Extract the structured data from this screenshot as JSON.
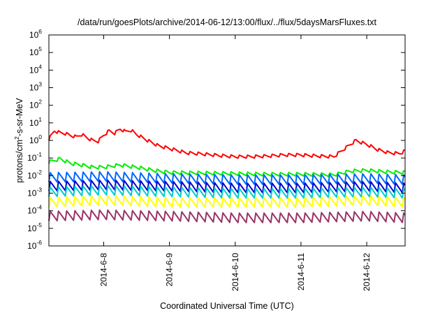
{
  "chart_data": {
    "type": "line",
    "title": "/data/run/goesPlots/archive/2014-06-12/13:00/flux/../flux/5daysMarsFluxes.txt",
    "xlabel": "Coordinated Universal Time (UTC)",
    "ylabel_base": "protons/cm",
    "ylabel_exp": "2",
    "ylabel_suffix": "-s-sr-MeV",
    "y_scale": "log",
    "ylim": [
      1e-06,
      1000000.0
    ],
    "xlim": [
      "2014-06-07T04:00",
      "2014-06-12T14:00"
    ],
    "grid": false,
    "x_ticks": [
      {
        "date": "2014-06-08T00:00",
        "label": "2014-6-8"
      },
      {
        "date": "2014-06-09T00:00",
        "label": "2014-6-9"
      },
      {
        "date": "2014-06-10T00:00",
        "label": "2014-6-10"
      },
      {
        "date": "2014-06-11T00:00",
        "label": "2014-6-11"
      },
      {
        "date": "2014-06-12T00:00",
        "label": "2014-6-12"
      }
    ],
    "y_ticks": [
      {
        "exp": -6,
        "base": "10",
        "sup": "-6"
      },
      {
        "exp": -5,
        "base": "10",
        "sup": "-5"
      },
      {
        "exp": -4,
        "base": "10",
        "sup": "-4"
      },
      {
        "exp": -3,
        "base": "10",
        "sup": "-3"
      },
      {
        "exp": -2,
        "base": "10",
        "sup": "-2"
      },
      {
        "exp": -1,
        "base": "10",
        "sup": "-1"
      },
      {
        "exp": 0,
        "base": "10",
        "sup": "0"
      },
      {
        "exp": 1,
        "base": "10",
        "sup": "1"
      },
      {
        "exp": 2,
        "base": "10",
        "sup": "2"
      },
      {
        "exp": 3,
        "base": "10",
        "sup": "3"
      },
      {
        "exp": 4,
        "base": "10",
        "sup": "4"
      },
      {
        "exp": 5,
        "base": "10",
        "sup": "5"
      },
      {
        "exp": 6,
        "base": "10",
        "sup": "6"
      }
    ],
    "series": [
      {
        "color": "#ff0000",
        "x": [
          "2014-06-07T04:00",
          "2014-06-07T06:00",
          "2014-06-07T08:00",
          "2014-06-07T10:00",
          "2014-06-07T12:00",
          "2014-06-07T14:00",
          "2014-06-07T16:00",
          "2014-06-07T18:00",
          "2014-06-07T20:00",
          "2014-06-07T22:00",
          "2014-06-08T00:00",
          "2014-06-08T02:00",
          "2014-06-08T04:00",
          "2014-06-08T06:00",
          "2014-06-08T08:00",
          "2014-06-08T10:00",
          "2014-06-08T12:00",
          "2014-06-08T16:00",
          "2014-06-08T20:00",
          "2014-06-09T00:00",
          "2014-06-09T06:00",
          "2014-06-09T12:00",
          "2014-06-09T18:00",
          "2014-06-10T00:00",
          "2014-06-10T06:00",
          "2014-06-10T12:00",
          "2014-06-10T18:00",
          "2014-06-11T00:00",
          "2014-06-11T06:00",
          "2014-06-11T12:00",
          "2014-06-11T16:00",
          "2014-06-11T20:00",
          "2014-06-12T00:00",
          "2014-06-12T04:00",
          "2014-06-12T08:00",
          "2014-06-12T12:00",
          "2014-06-12T14:00"
        ],
        "y": [
          1.2,
          3.5,
          2.8,
          2.5,
          1.9,
          1.6,
          2.2,
          1.4,
          1.0,
          0.9,
          2.0,
          3.5,
          2.6,
          4.5,
          3.2,
          3.8,
          2.2,
          1.0,
          0.5,
          0.35,
          0.2,
          0.17,
          0.14,
          0.12,
          0.12,
          0.13,
          0.15,
          0.15,
          0.13,
          0.12,
          0.35,
          1.0,
          0.6,
          0.3,
          0.2,
          0.18,
          0.25
        ]
      },
      {
        "color": "#00ee00",
        "x": [
          "2014-06-07T04:00",
          "2014-06-07T08:00",
          "2014-06-07T12:00",
          "2014-06-07T16:00",
          "2014-06-07T20:00",
          "2014-06-08T00:00",
          "2014-06-08T06:00",
          "2014-06-08T12:00",
          "2014-06-08T18:00",
          "2014-06-09T00:00",
          "2014-06-09T12:00",
          "2014-06-10T00:00",
          "2014-06-10T12:00",
          "2014-06-11T00:00",
          "2014-06-11T12:00",
          "2014-06-11T18:00",
          "2014-06-12T00:00",
          "2014-06-12T08:00",
          "2014-06-12T14:00"
        ],
        "y": [
          0.06,
          0.09,
          0.05,
          0.04,
          0.03,
          0.03,
          0.04,
          0.03,
          0.02,
          0.015,
          0.014,
          0.013,
          0.012,
          0.012,
          0.011,
          0.018,
          0.02,
          0.016,
          0.015
        ]
      },
      {
        "color": "#0066ff",
        "x": [
          "2014-06-07T04:00",
          "2014-06-08T00:00",
          "2014-06-09T00:00",
          "2014-06-10T00:00",
          "2014-06-11T00:00",
          "2014-06-12T00:00",
          "2014-06-12T14:00"
        ],
        "y": [
          0.008,
          0.009,
          0.007,
          0.006,
          0.006,
          0.007,
          0.006
        ]
      },
      {
        "color": "#0000cc",
        "x": [
          "2014-06-07T04:00",
          "2014-06-08T00:00",
          "2014-06-09T00:00",
          "2014-06-10T00:00",
          "2014-06-11T00:00",
          "2014-06-12T00:00",
          "2014-06-12T14:00"
        ],
        "y": [
          0.0025,
          0.003,
          0.0025,
          0.002,
          0.002,
          0.0025,
          0.002
        ]
      },
      {
        "color": "#00cccc",
        "x": [
          "2014-06-07T04:00",
          "2014-06-08T00:00",
          "2014-06-09T00:00",
          "2014-06-10T00:00",
          "2014-06-11T00:00",
          "2014-06-12T00:00",
          "2014-06-12T14:00"
        ],
        "y": [
          0.0012,
          0.0015,
          0.0012,
          0.001,
          0.001,
          0.0012,
          0.001
        ]
      },
      {
        "color": "#ffff00",
        "x": [
          "2014-06-07T04:00",
          "2014-06-08T00:00",
          "2014-06-09T00:00",
          "2014-06-10T00:00",
          "2014-06-11T00:00",
          "2014-06-12T00:00",
          "2014-06-12T14:00"
        ],
        "y": [
          0.0003,
          0.0004,
          0.0003,
          0.0003,
          0.0003,
          0.0004,
          0.0003
        ]
      },
      {
        "color": "#993366",
        "x": [
          "2014-06-07T04:00",
          "2014-06-08T00:00",
          "2014-06-09T00:00",
          "2014-06-10T00:00",
          "2014-06-11T00:00",
          "2014-06-12T00:00",
          "2014-06-12T14:00"
        ],
        "y": [
          5e-05,
          6e-05,
          5e-05,
          4e-05,
          4e-05,
          5e-05,
          4e-05
        ]
      }
    ]
  }
}
